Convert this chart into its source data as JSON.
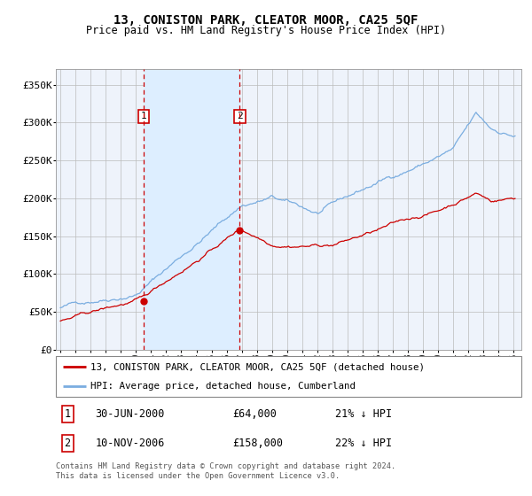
{
  "title": "13, CONISTON PARK, CLEATOR MOOR, CA25 5QF",
  "subtitle": "Price paid vs. HM Land Registry's House Price Index (HPI)",
  "ylabel_ticks": [
    "£0",
    "£50K",
    "£100K",
    "£150K",
    "£200K",
    "£250K",
    "£300K",
    "£350K"
  ],
  "ytick_values": [
    0,
    50000,
    100000,
    150000,
    200000,
    250000,
    300000,
    350000
  ],
  "ylim": [
    0,
    370000
  ],
  "xlim_start": 1994.7,
  "xlim_end": 2025.5,
  "sale1_date": 2000.5,
  "sale1_price": 64000,
  "sale2_date": 2006.87,
  "sale2_price": 158000,
  "legend_line1": "13, CONISTON PARK, CLEATOR MOOR, CA25 5QF (detached house)",
  "legend_line2": "HPI: Average price, detached house, Cumberland",
  "sale1_text": "30-JUN-2000",
  "sale1_amount": "£64,000",
  "sale1_hpi": "21% ↓ HPI",
  "sale2_text": "10-NOV-2006",
  "sale2_amount": "£158,000",
  "sale2_hpi": "22% ↓ HPI",
  "footer1": "Contains HM Land Registry data © Crown copyright and database right 2024.",
  "footer2": "This data is licensed under the Open Government Licence v3.0.",
  "property_color": "#cc0000",
  "hpi_color": "#7aade0",
  "shade_color": "#ddeeff",
  "background_color": "#eef3fb",
  "grid_color": "#bbbbbb"
}
